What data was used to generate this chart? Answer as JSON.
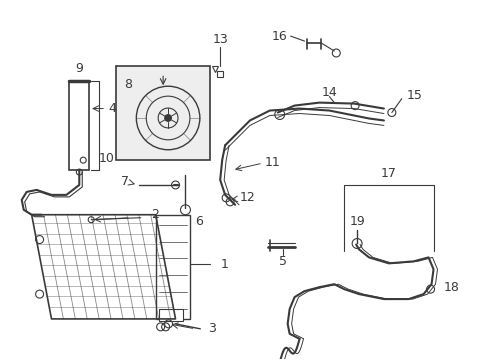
{
  "bg_color": "#ffffff",
  "line_color": "#3a3a3a",
  "fig_width": 4.89,
  "fig_height": 3.6,
  "dpi": 100
}
